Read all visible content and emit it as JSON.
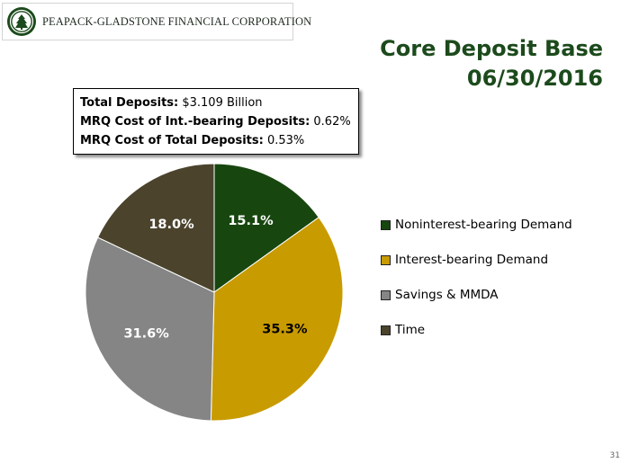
{
  "logo": {
    "company_name": "PEAPACK-GLADSTONE FINANCIAL CORPORATION"
  },
  "title": {
    "line1": "Core Deposit Base",
    "line2": "06/30/2016"
  },
  "info_box": {
    "lines": [
      {
        "label": "Total Deposits:",
        "value": " $3.109 Billion"
      },
      {
        "label": "MRQ Cost of Int.-bearing Deposits:",
        "value": " 0.62%"
      },
      {
        "label": "MRQ Cost of Total Deposits:",
        "value": " 0.53%"
      }
    ]
  },
  "colors": {
    "title": "#1c4a1c",
    "slice_outline": "#ffffff"
  },
  "chart_data": {
    "type": "pie",
    "start_angle": "12 o'clock",
    "direction": "clockwise",
    "legend_position": "right",
    "slices": [
      {
        "name": "Noninterest-bearing Demand",
        "value": 15.1,
        "label": "15.1%",
        "color": "#17470f",
        "label_color": "#ffffff"
      },
      {
        "name": "Interest-bearing Demand",
        "value": 35.3,
        "label": "35.3%",
        "color": "#c89b00",
        "label_color": "#000000"
      },
      {
        "name": "Savings & MMDA",
        "value": 31.6,
        "label": "31.6%",
        "color": "#858585",
        "label_color": "#ffffff"
      },
      {
        "name": "Time",
        "value": 18.0,
        "label": "18.0%",
        "color": "#4b432c",
        "label_color": "#ffffff"
      }
    ]
  },
  "page_number": "31"
}
